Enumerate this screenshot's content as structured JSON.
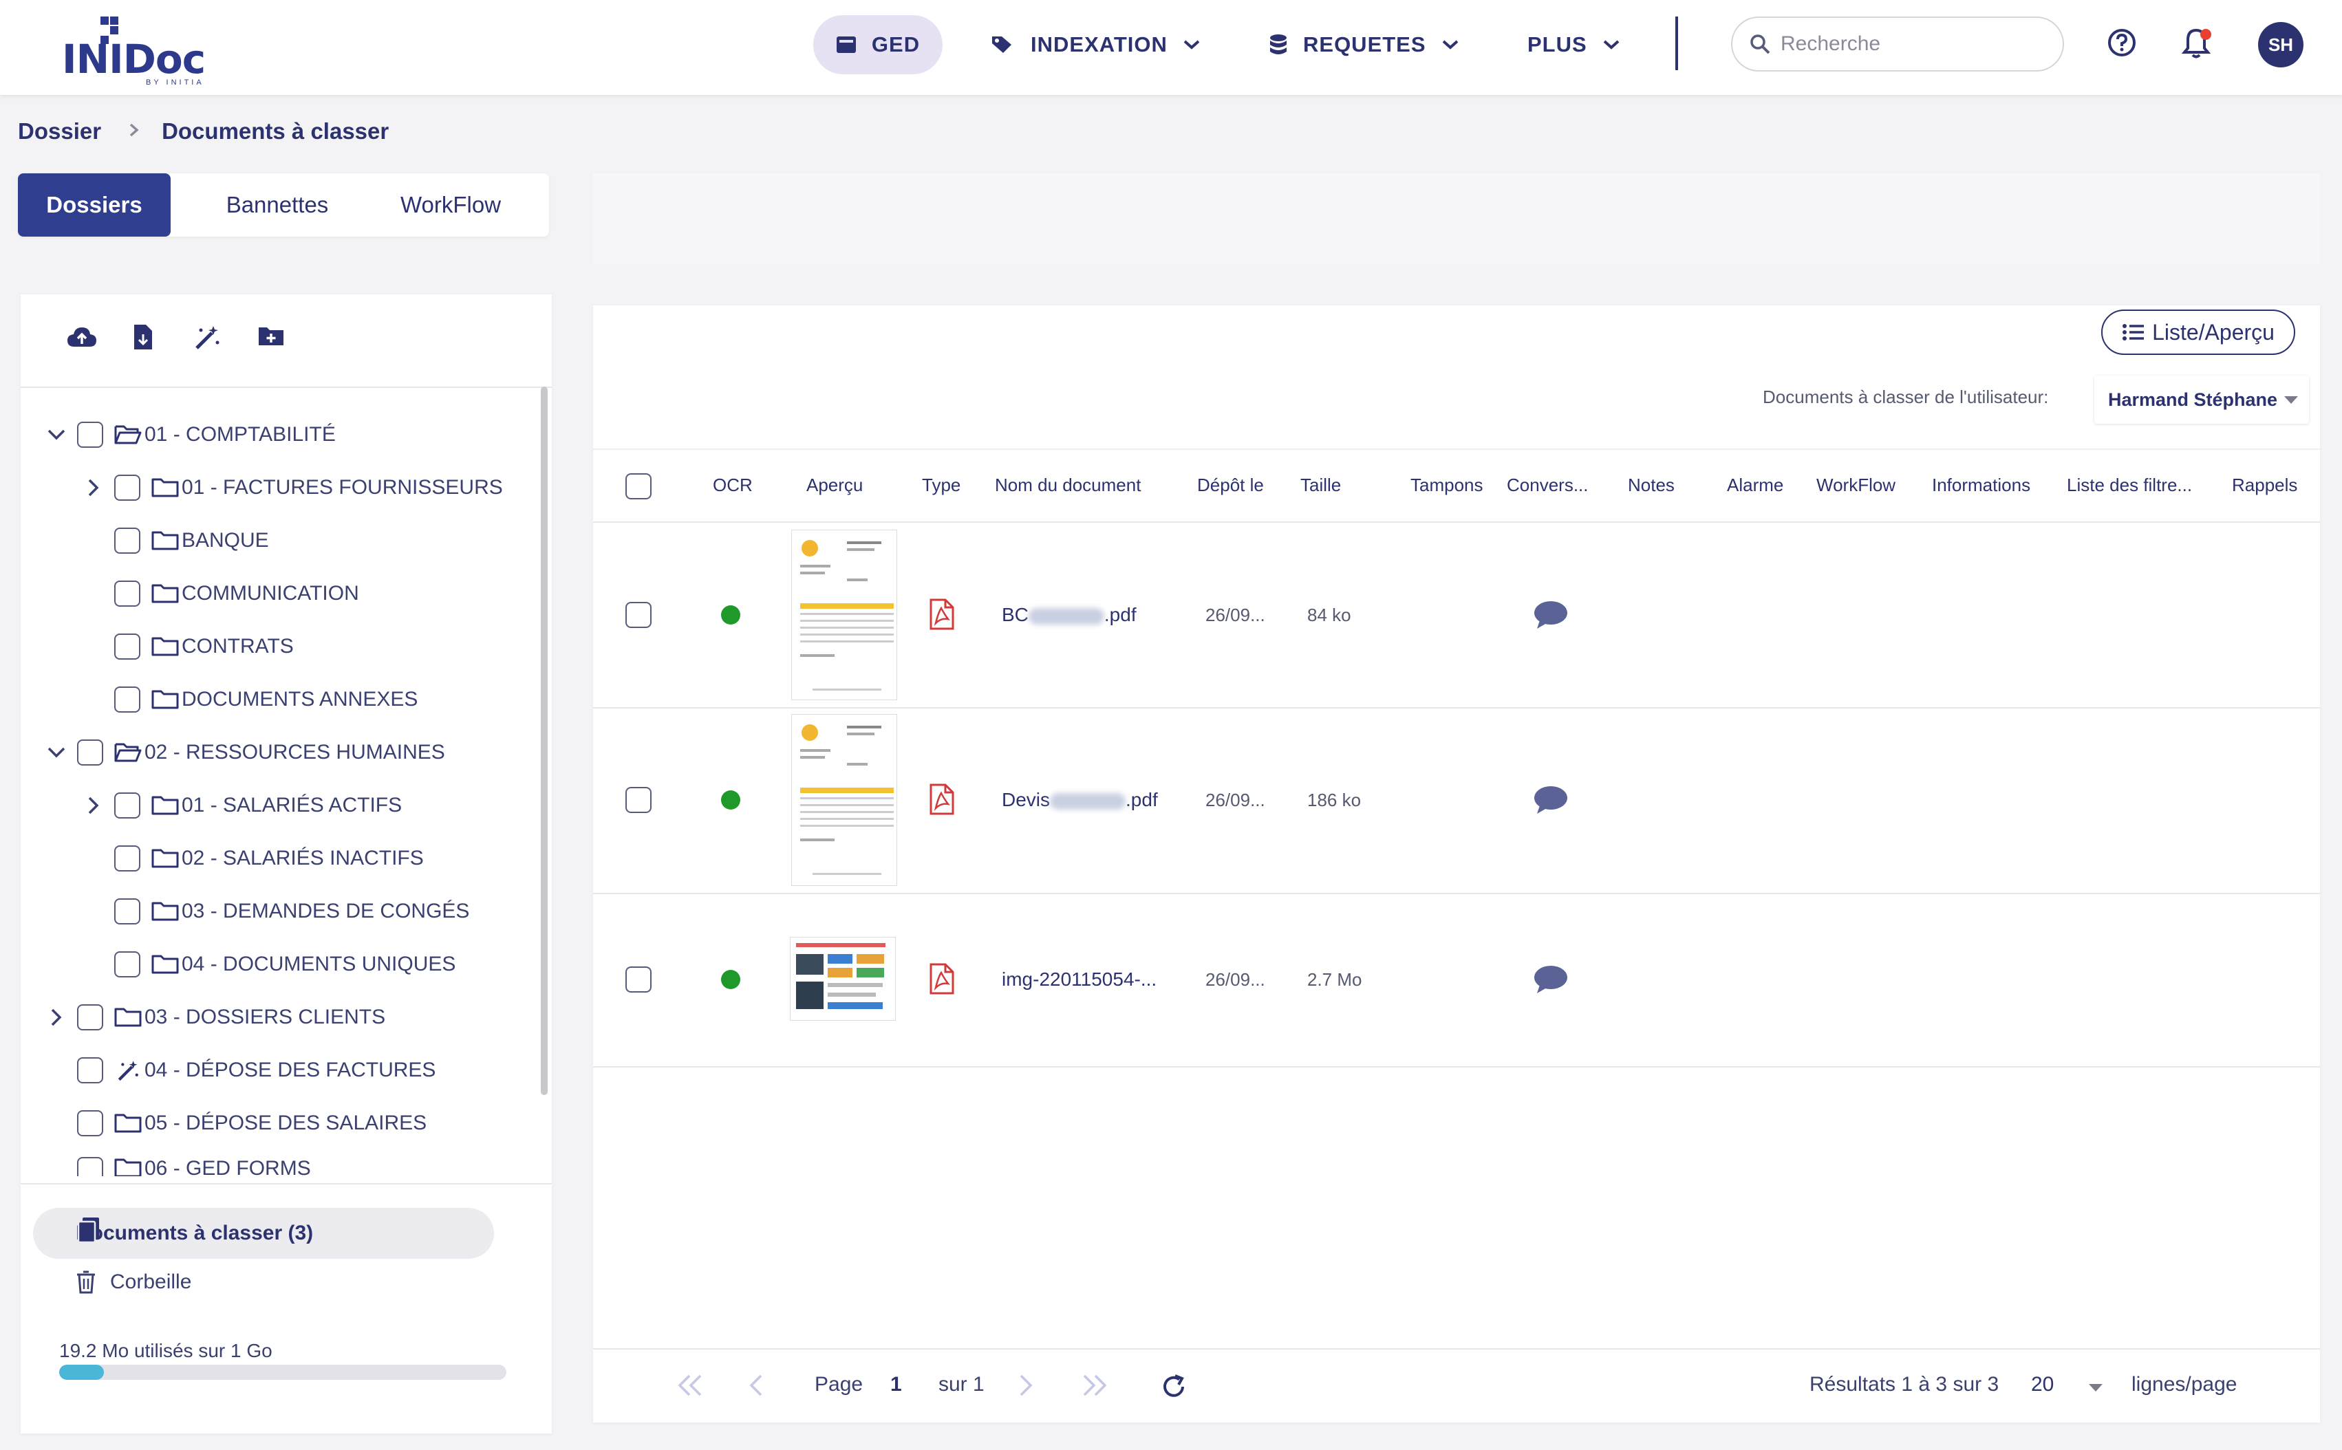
{
  "header": {
    "logo": {
      "text_left": "INI",
      "text_right": "Doc",
      "sub": "BY INITIA"
    },
    "nav": {
      "ged": "GED",
      "indexation": "INDEXATION",
      "requetes": "REQUETES",
      "plus": "PLUS"
    },
    "search": {
      "placeholder": "Recherche"
    },
    "avatar_initials": "SH",
    "icons": {
      "ged": "folder-card-icon",
      "indexation": "tag-icon",
      "requetes": "database-icon",
      "help": "help-circle-icon",
      "bell": "bell-icon"
    }
  },
  "breadcrumb": {
    "root": "Dossier",
    "current": "Documents à classer"
  },
  "left_tabs": [
    "Dossiers",
    "Bannettes",
    "WorkFlow"
  ],
  "tree": [
    {
      "label": "01 - COMPTABILITÉ",
      "level": 0,
      "expanded": true
    },
    {
      "label": "01 - FACTURES FOURNISSEURS",
      "level": 1,
      "expandable": true
    },
    {
      "label": "BANQUE",
      "level": 1
    },
    {
      "label": "COMMUNICATION",
      "level": 1
    },
    {
      "label": "CONTRATS",
      "level": 1
    },
    {
      "label": "DOCUMENTS ANNEXES",
      "level": 1
    },
    {
      "label": "02 - RESSOURCES HUMAINES",
      "level": 0,
      "expanded": true
    },
    {
      "label": "01 - SALARIÉS ACTIFS",
      "level": 1,
      "expandable": true
    },
    {
      "label": "02 - SALARIÉS INACTIFS",
      "level": 1
    },
    {
      "label": "03 - DEMANDES DE CONGÉS",
      "level": 1
    },
    {
      "label": "04 - DOCUMENTS UNIQUES",
      "level": 1
    },
    {
      "label": "03 - DOSSIERS CLIENTS",
      "level": 0,
      "expandable": true
    },
    {
      "label": "04 - DÉPOSE DES FACTURES",
      "level": 0,
      "icon": "magic-wand"
    },
    {
      "label": "05 - DÉPOSE DES SALAIRES",
      "level": 0
    },
    {
      "label": "06 - GED FORMS",
      "level": 0
    }
  ],
  "sidebar_bottom": {
    "documents_a_classer": "Documents à classer (3)",
    "corbeille": "Corbeille",
    "storage_text": "19.2 Mo utilisés sur 1 Go",
    "storage_fraction": 0.0192
  },
  "right": {
    "view_toggle": "Liste/Aperçu",
    "user_filter_label": "Documents à classer de l'utilisateur:",
    "user_filter_value": "Harmand Stéphane"
  },
  "table": {
    "columns": [
      "OCR",
      "Aperçu",
      "Type",
      "Nom du document",
      "Dépôt le",
      "Taille",
      "Tampons",
      "Convers...",
      "Notes",
      "Alarme",
      "WorkFlow",
      "Informations",
      "Liste des filtre...",
      "Rappels"
    ],
    "rows": [
      {
        "name_prefix": "BC",
        "name_suffix": ".pdf",
        "date": "26/09...",
        "size": "84 ko",
        "ocr": true
      },
      {
        "name_prefix": "Devis",
        "name_suffix": ".pdf",
        "date": "26/09...",
        "size": "186 ko",
        "ocr": true
      },
      {
        "name_prefix": "img-220115054-...",
        "name_suffix": "",
        "date": "26/09...",
        "size": "2.7 Mo",
        "ocr": true
      }
    ]
  },
  "pagination": {
    "page_label": "Page",
    "page": "1",
    "of": "sur 1",
    "results": "Résultats 1 à 3 sur 3",
    "rows_per_page": "20",
    "rows_per_page_label": "lignes/page"
  }
}
